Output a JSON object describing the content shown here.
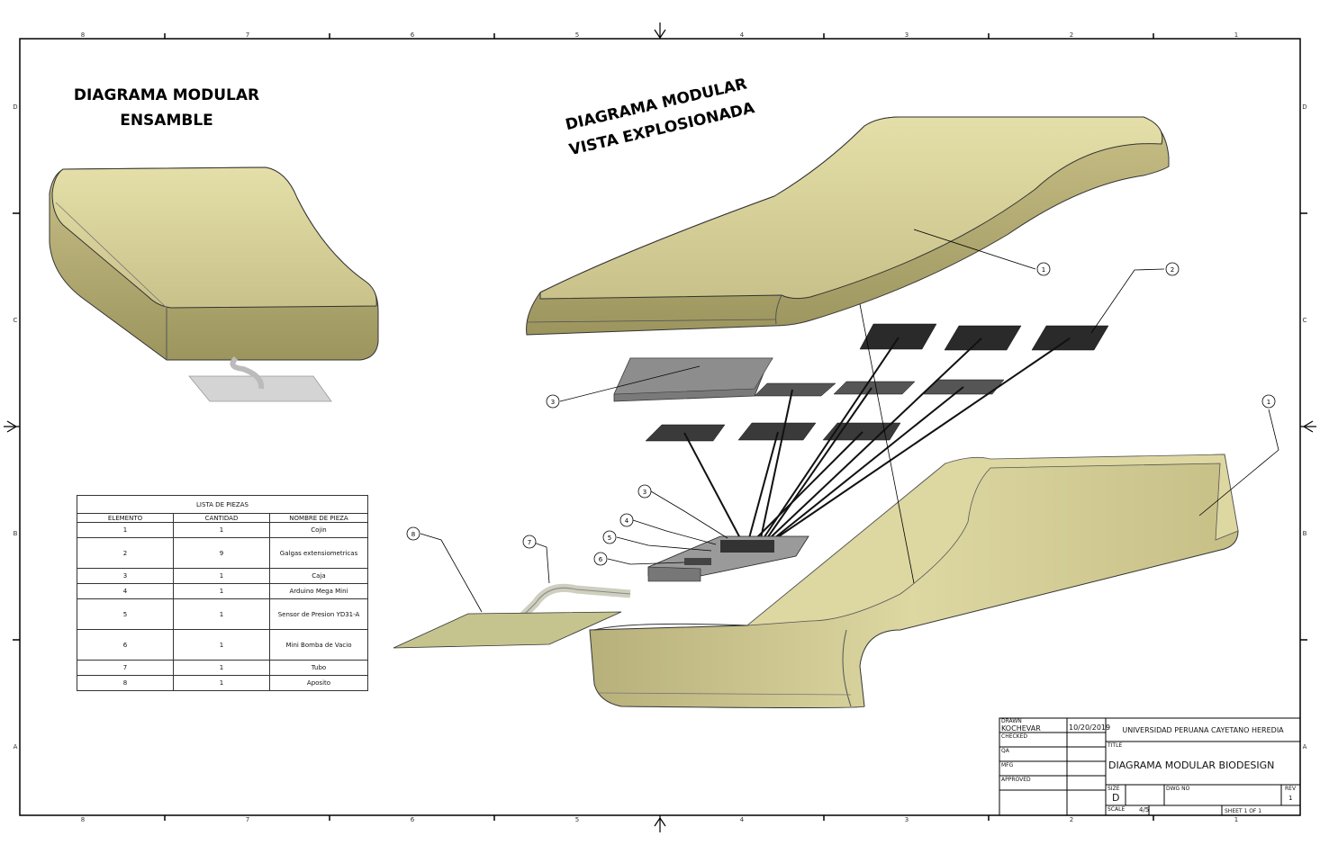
{
  "headings": {
    "assembly_line1": "DIAGRAMA MODULAR",
    "assembly_line2": "ENSAMBLE",
    "exploded_line1": "DIAGRAMA MODULAR",
    "exploded_line2": "VISTA EXPLOSIONADA"
  },
  "zones": {
    "columns": [
      "8",
      "7",
      "6",
      "5",
      "4",
      "3",
      "2",
      "1"
    ],
    "rows": [
      "D",
      "C",
      "B",
      "A"
    ]
  },
  "callouts": [
    "1",
    "2",
    "3",
    "1",
    "3",
    "4",
    "5",
    "6",
    "7",
    "8"
  ],
  "parts_list": {
    "caption": "LISTA DE PIEZAS",
    "headers": [
      "ELEMENTO",
      "CANTIDAD",
      "NOMBRE DE PIEZA"
    ],
    "rows": [
      {
        "item": "1",
        "qty": "1",
        "name": "Cojin"
      },
      {
        "item": "2",
        "qty": "9",
        "name": "Galgas extensiometricas"
      },
      {
        "item": "3",
        "qty": "1",
        "name": "Caja"
      },
      {
        "item": "4",
        "qty": "1",
        "name": "Arduino Mega Mini"
      },
      {
        "item": "5",
        "qty": "1",
        "name": "Sensor de Presion YD31-A"
      },
      {
        "item": "6",
        "qty": "1",
        "name": "Mini Bomba de Vacio"
      },
      {
        "item": "7",
        "qty": "1",
        "name": "Tubo"
      },
      {
        "item": "8",
        "qty": "1",
        "name": "Aposito"
      }
    ]
  },
  "title_block": {
    "drawn_label": "DRAWN",
    "drawn_by": "KOCHEVAR",
    "drawn_date": "10/20/2019",
    "checked_label": "CHECKED",
    "qa_label": "QA",
    "mfg_label": "MFG",
    "approved_label": "APPROVED",
    "organization": "UNIVERSIDAD PERUANA CAYETANO HEREDIA",
    "title_label": "TITLE",
    "title": "DIAGRAMA MODULAR BIODESIGN",
    "size_label": "SIZE",
    "size": "D",
    "dwg_no_label": "DWG NO",
    "rev_label": "REV",
    "rev": "1",
    "scale_label": "SCALE",
    "scale": "4/5",
    "sheet": "SHEET 1  OF 1"
  },
  "colors": {
    "part_fill": "#d8d19a",
    "part_shadow": "#a9a26a",
    "gauge_dark": "#2a2a2a",
    "box_gray": "#7a7a7a"
  }
}
